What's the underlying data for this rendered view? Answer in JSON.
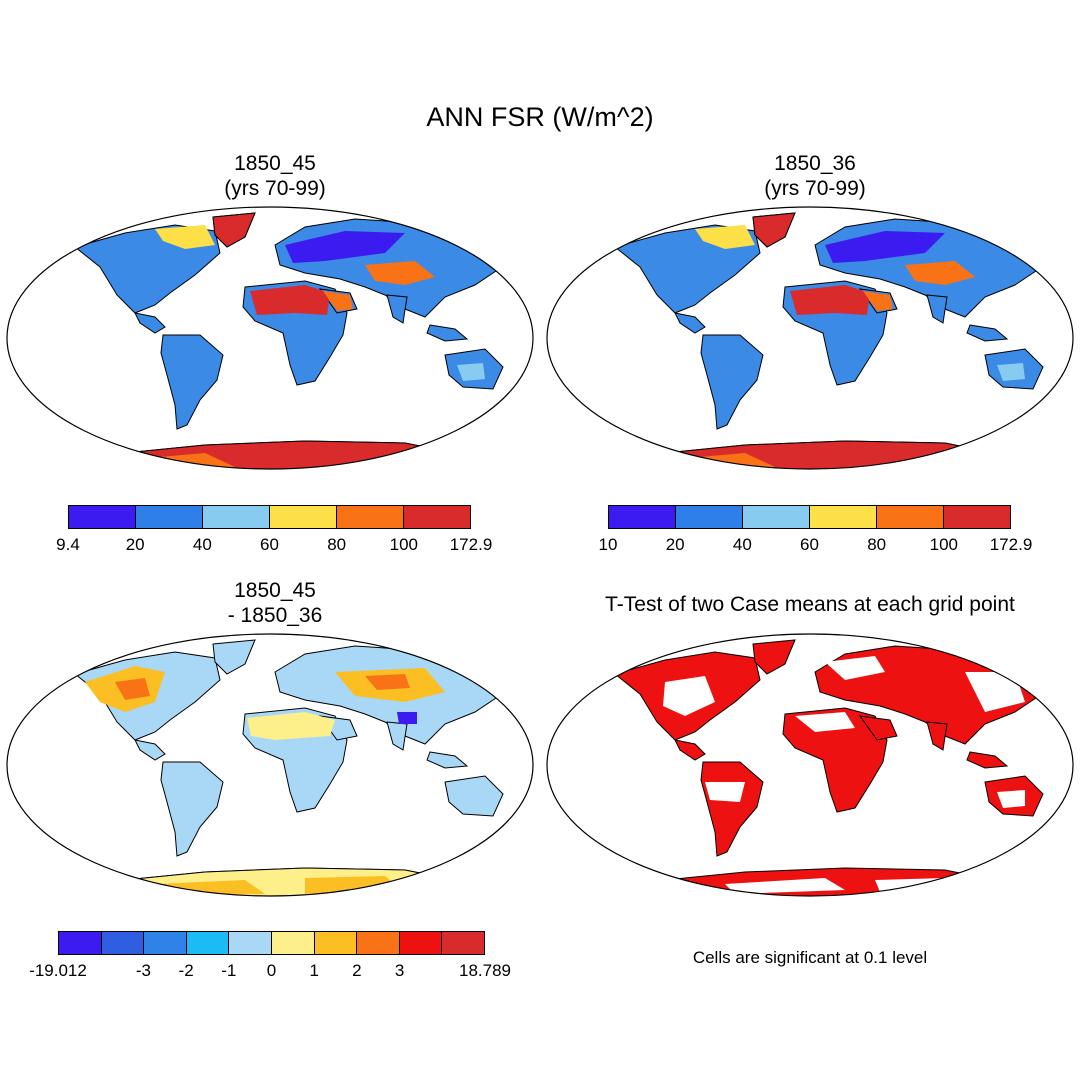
{
  "title": "ANN FSR (W/m^2)",
  "panels": {
    "top_left": {
      "line1": "1850_45",
      "line2": "(yrs 70-99)"
    },
    "top_right": {
      "line1": "1850_36",
      "line2": "(yrs 70-99)"
    },
    "bottom_left": {
      "line1": "1850_45",
      "line2": "- 1850_36"
    },
    "bottom_right": {
      "line1": "T-Test of two Case means at each grid point"
    }
  },
  "colorbars": {
    "top_left": {
      "colors": [
        "#3b1bf0",
        "#2f7fe8",
        "#87cbf0",
        "#fde047",
        "#f97316",
        "#d92b2b"
      ],
      "labels": [
        "9.4",
        "20",
        "40",
        "60",
        "80",
        "100",
        "172.9"
      ]
    },
    "top_right": {
      "colors": [
        "#3b1bf0",
        "#2f7fe8",
        "#87cbf0",
        "#fde047",
        "#f97316",
        "#d92b2b"
      ],
      "labels": [
        "10",
        "20",
        "40",
        "60",
        "80",
        "100",
        "172.9"
      ]
    },
    "bottom_left": {
      "colors": [
        "#3b1bf0",
        "#2f5fe0",
        "#2f82e8",
        "#1bbcf5",
        "#a8d8f5",
        "#fdf08a",
        "#fbbf24",
        "#f97316",
        "#ee1111",
        "#d92b2b"
      ],
      "labels": [
        "-19.012",
        "-3",
        "-2",
        "-1",
        "0",
        "1",
        "2",
        "3",
        "18.789"
      ]
    }
  },
  "significance_note": "Cells are significant at 0.1 level",
  "colors": {
    "land_base": "#3a8ae6",
    "significant": "#ee1111"
  }
}
